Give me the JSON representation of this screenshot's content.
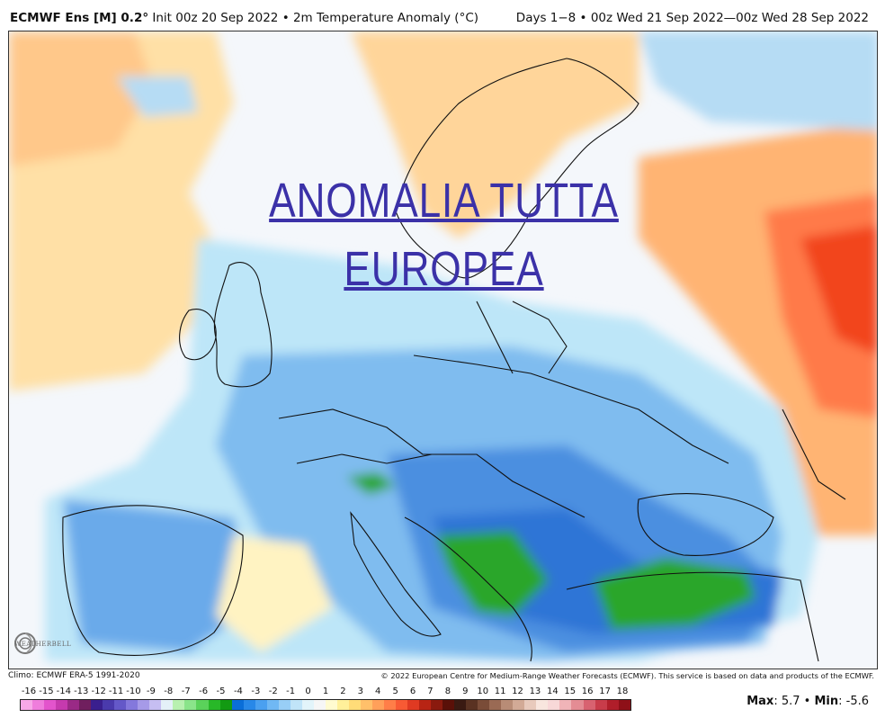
{
  "header": {
    "model": "ECMWF Ens [M] 0.2°",
    "init": "Init 00z 20 Sep 2022",
    "separator": "•",
    "variable": "2m Temperature Anomaly (°C)",
    "valid": "Days 1−8 • 00z Wed 21 Sep 2022—00z Wed 28 Sep 2022"
  },
  "overlay": {
    "line1": "ANOMALIA TUTTA",
    "line2": "EUROPEA",
    "color": "#3b31a8"
  },
  "logo": {
    "text": "WEATHERBELL",
    "icon": "swirl-logo-icon"
  },
  "footer": {
    "climo": "Climo: ECMWF ERA-5 1991-2020",
    "copyright": "© 2022 European Centre for Medium-Range Weather Forecasts (ECMWF). This service is based on data and products of the ECMWF."
  },
  "stats": {
    "max_label": "Max",
    "max_value": ": 5.7",
    "bullet": "•",
    "min_label": "Min",
    "min_value": ": -5.6"
  },
  "colorbar": {
    "labels": [
      "-16",
      "-15",
      "-14",
      "-13",
      "-12",
      "-11",
      "-10",
      "-9",
      "-8",
      "-7",
      "-6",
      "-5",
      "-4",
      "-3",
      "-2",
      "-1",
      "0",
      "1",
      "2",
      "3",
      "4",
      "5",
      "6",
      "7",
      "8",
      "9",
      "10",
      "11",
      "12",
      "13",
      "14",
      "15",
      "16",
      "17",
      "18"
    ],
    "colors": [
      "#f7a8e8",
      "#ef7ddc",
      "#e354cc",
      "#c63aae",
      "#9a2a86",
      "#701f5e",
      "#3a1f8e",
      "#4a3aac",
      "#6458c8",
      "#8478dc",
      "#a69ae8",
      "#c6bef2",
      "#e4f0f8",
      "#b8f0b0",
      "#8ae48a",
      "#5ad25a",
      "#28b828",
      "#129a12",
      "#0a6ed8",
      "#2888e8",
      "#4aa0f0",
      "#70b8f4",
      "#98cef6",
      "#c0e4f8",
      "#e2f4fa",
      "#f6f6f6",
      "#fffbd0",
      "#fff09a",
      "#ffdc78",
      "#ffc06a",
      "#ffa05a",
      "#ff7e48",
      "#f85a34",
      "#e03a22",
      "#b82414",
      "#8a1a0e",
      "#5a1008",
      "#3a1a12",
      "#5a3222",
      "#7a4c38",
      "#9a6a54",
      "#b88c76",
      "#d2aa96",
      "#e8cabc",
      "#f8e6de",
      "#f8d8d8",
      "#f0b4b8",
      "#e48c94",
      "#d86270",
      "#c83c4a",
      "#b01e2a",
      "#8e1018"
    ]
  },
  "map_colors": {
    "sea": "#f4f7fb",
    "warm_light": "#fff3c2",
    "warm_mid": "#ffd79a",
    "warm_high": "#ffb26e",
    "hot": "#ff7a4a",
    "hottest": "#f2451f",
    "cool_light": "#d2f0fa",
    "cool_mid": "#aadaf6",
    "cold": "#78b6ee",
    "colder": "#4e92e2",
    "coldest": "#2f74d6",
    "green": "#2aa62a",
    "border": "#111111"
  }
}
